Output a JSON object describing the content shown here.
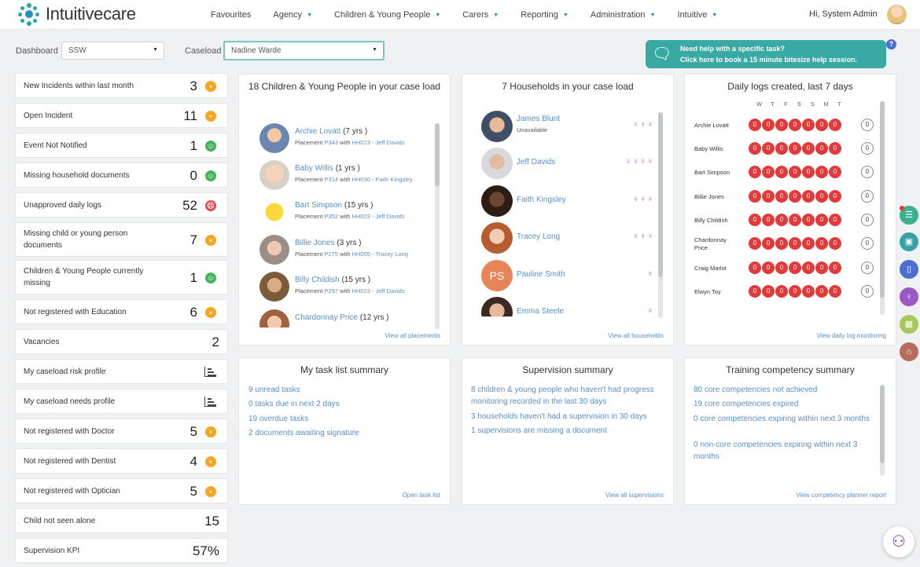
{
  "nav": {
    "brand": "Intuitivecare",
    "items": [
      {
        "label": "Favourites",
        "caret": false
      },
      {
        "label": "Agency",
        "caret": true
      },
      {
        "label": "Children & Young People",
        "caret": true
      },
      {
        "label": "Carers",
        "caret": true
      },
      {
        "label": "Reporting",
        "caret": true
      },
      {
        "label": "Administration",
        "caret": true
      },
      {
        "label": "Intuitive",
        "caret": true
      }
    ],
    "greeting": "Hi, System Admin"
  },
  "filters": {
    "dashboard_label": "Dashboard",
    "dashboard_value": "SSW",
    "caseload_label": "Caseload",
    "caseload_value": "Nadine Warde"
  },
  "help": {
    "line1": "Need help with a specific task?",
    "line2": "Click here to book a 15 minute bitesize help session.",
    "question": "?"
  },
  "kpis": [
    {
      "label": "New Incidents within last month",
      "value": "3",
      "status": "orange"
    },
    {
      "label": "Open Incident",
      "value": "11",
      "status": "orange"
    },
    {
      "label": "Event Not Notified",
      "value": "1",
      "status": "green"
    },
    {
      "label": "Missing household documents",
      "value": "0",
      "status": "green"
    },
    {
      "label": "Unapproved daily logs",
      "value": "52",
      "status": "red"
    },
    {
      "label": "Missing child or young person documents",
      "value": "7",
      "status": "orange"
    },
    {
      "label": "Children & Young People currently missing",
      "value": "1",
      "status": "green"
    },
    {
      "label": "Not registered with Education",
      "value": "6",
      "status": "orange"
    },
    {
      "label": "Vacancies",
      "value": "2",
      "status": "none"
    },
    {
      "label": "My caseload risk profile",
      "value": "",
      "status": "chart"
    },
    {
      "label": "My caseload needs profile",
      "value": "",
      "status": "chart"
    },
    {
      "label": "Not registered with Doctor",
      "value": "5",
      "status": "orange"
    },
    {
      "label": "Not registered with Dentist",
      "value": "4",
      "status": "orange"
    },
    {
      "label": "Not registered with Optician",
      "value": "5",
      "status": "orange"
    },
    {
      "label": "Child not seen alone",
      "value": "15",
      "status": "none"
    },
    {
      "label": "Supervision KPI",
      "value": "57%",
      "status": "none"
    }
  ],
  "children_card": {
    "title": "18 Children & Young People in your case load",
    "link": "View all placements",
    "items": [
      {
        "name": "Archie Lovatt",
        "age": "(7 yrs )",
        "placement_prefix": "Placement",
        "placement": "P343",
        "with": "with",
        "household": "HH023 - Jeff Davids"
      },
      {
        "name": "Baby Willis",
        "age": "(1 yrs )",
        "placement_prefix": "Placement",
        "placement": "P314",
        "with": "with",
        "household": "HH036 - Faith Kingsley"
      },
      {
        "name": "Bart Simpson",
        "age": "(15 yrs )",
        "placement_prefix": "Placement",
        "placement": "P352",
        "with": "with",
        "household": "HH023 - Jeff Davids"
      },
      {
        "name": "Billie Jones",
        "age": "(3 yrs )",
        "placement_prefix": "Placement",
        "placement": "P275",
        "with": "with",
        "household": "HH005 - Tracey Long"
      },
      {
        "name": "Billy Childish",
        "age": "(15 yrs )",
        "placement_prefix": "Placement",
        "placement": "P297",
        "with": "with",
        "household": "HH023 - Jeff Davids"
      },
      {
        "name": "Chardonnay Price",
        "age": "(12 yrs )",
        "placement_prefix": "",
        "placement": "",
        "with": "",
        "household": ""
      }
    ]
  },
  "households_card": {
    "title": "7 Households in your case load",
    "link": "View all households",
    "items": [
      {
        "name": "James Blunt",
        "sub": "Unavailable",
        "figures": "♀♀♀"
      },
      {
        "name": "Jeff Davids",
        "sub": "",
        "figures": "♀♀♀♀"
      },
      {
        "name": "Faith Kingsley",
        "sub": "",
        "figures": "♀♀♀"
      },
      {
        "name": "Tracey Long",
        "sub": "",
        "figures": "♀♀♀"
      },
      {
        "name": "Pauline Smith",
        "sub": "",
        "initials": "PS",
        "figures": "♀"
      },
      {
        "name": "Emma Steele",
        "sub": "",
        "figures": "♀"
      }
    ]
  },
  "daily_logs_card": {
    "title": "Daily logs created, last 7 days",
    "link": "View daily log monitoring",
    "days": [
      "W",
      "T",
      "F",
      "S",
      "S",
      "M",
      "T"
    ],
    "rows": [
      {
        "name": "Archie Lovatt",
        "counts": [
          "0",
          "0",
          "0",
          "0",
          "0",
          "0",
          "0"
        ],
        "total": "0"
      },
      {
        "name": "Baby Willis",
        "counts": [
          "0",
          "0",
          "0",
          "0",
          "0",
          "0",
          "0"
        ],
        "total": "0"
      },
      {
        "name": "Bart Simpson",
        "counts": [
          "0",
          "0",
          "0",
          "0",
          "0",
          "0",
          "0"
        ],
        "total": "0"
      },
      {
        "name": "Billie Jones",
        "counts": [
          "0",
          "0",
          "0",
          "0",
          "0",
          "0",
          "0"
        ],
        "total": "0"
      },
      {
        "name": "Billy Childish",
        "counts": [
          "0",
          "0",
          "0",
          "0",
          "0",
          "0",
          "0"
        ],
        "total": "0"
      },
      {
        "name": "Chardonnay Price",
        "counts": [
          "0",
          "0",
          "0",
          "0",
          "0",
          "0",
          "0"
        ],
        "total": "0"
      },
      {
        "name": "Craig Marlot",
        "counts": [
          "0",
          "0",
          "0",
          "0",
          "0",
          "0",
          "0"
        ],
        "total": "0"
      },
      {
        "name": "Elwyn Toy",
        "counts": [
          "0",
          "0",
          "0",
          "0",
          "0",
          "0",
          "0"
        ],
        "total": "0"
      }
    ]
  },
  "task_card": {
    "title": "My task list summary",
    "link": "Open task list",
    "lines": [
      {
        "num": "9",
        "text": "unread tasks"
      },
      {
        "num": "0",
        "text": "tasks due in next 2 days"
      },
      {
        "num": "19",
        "text": "overdue tasks"
      },
      {
        "num": "2",
        "text": "documents awaiting signature"
      }
    ]
  },
  "supervision_card": {
    "title": "Supervision summary",
    "link": "View all supervisions",
    "lines": [
      {
        "num": "8",
        "text": "children & young people who haven't had progress monitoring recorded in the last 30 days"
      },
      {
        "num": "3",
        "text": "households haven't had a supervision in 30 days"
      },
      {
        "num": "1",
        "text": "supervisions are missing a document"
      }
    ]
  },
  "training_card": {
    "title": "Training competency summary",
    "link": "View competency planner report",
    "lines": [
      {
        "num": "80",
        "text": "core competencies not achieved"
      },
      {
        "num": "19",
        "text": "core competencies expired"
      },
      {
        "num": "0",
        "text": "core competencies expiring within next 3 months"
      },
      {
        "num": "0",
        "text": "non-core competencies expiring within next 3 months"
      }
    ]
  },
  "side_icons": [
    {
      "name": "list-icon",
      "color": "#3bb08f",
      "glyph": "☰"
    },
    {
      "name": "briefcase-icon",
      "color": "#36a2a8",
      "glyph": "▣"
    },
    {
      "name": "document-icon",
      "color": "#4a6fd0",
      "glyph": "▯"
    },
    {
      "name": "person-icon",
      "color": "#9b59c6",
      "glyph": "♀"
    },
    {
      "name": "calendar-icon",
      "color": "#a6c75a",
      "glyph": "▦"
    },
    {
      "name": "stamp-icon",
      "color": "#b86b5a",
      "glyph": "⌂"
    }
  ],
  "owl_glyph": "⚇"
}
